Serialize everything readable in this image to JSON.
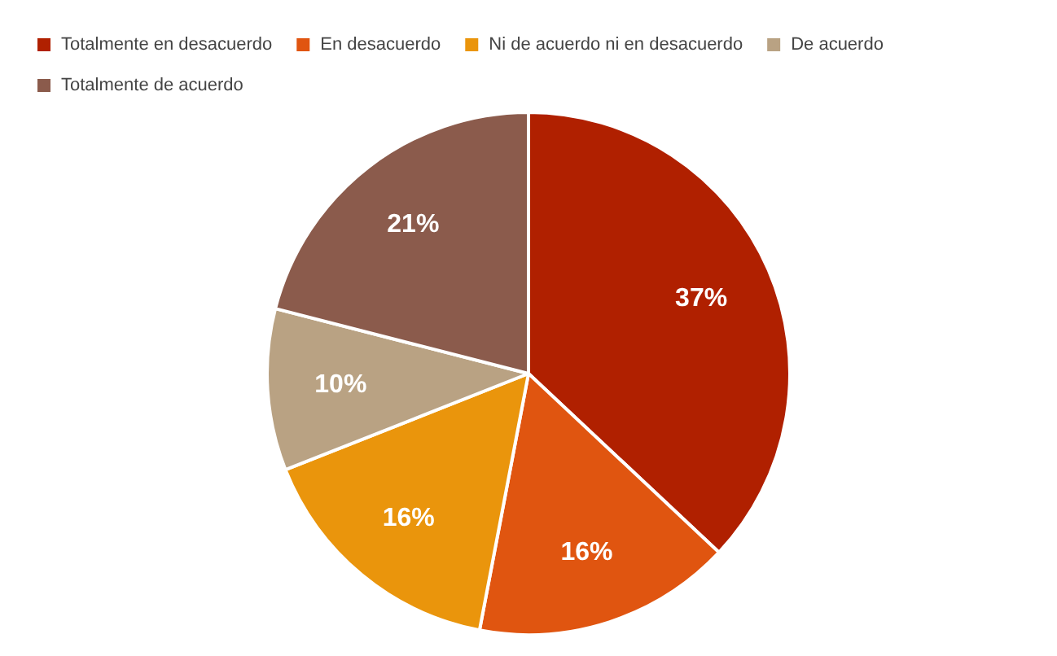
{
  "chart_data": {
    "type": "pie",
    "categories": [
      "Totalmente en desacuerdo",
      "En desacuerdo",
      "Ni de acuerdo ni en desacuerdo",
      "De acuerdo",
      "Totalmente de acuerdo"
    ],
    "values": [
      37,
      16,
      16,
      10,
      21
    ],
    "colors": [
      "#b02000",
      "#e05510",
      "#ea950c",
      "#b9a283",
      "#8b5b4c"
    ],
    "value_labels": [
      "37%",
      "16%",
      "16%",
      "10%",
      "21%"
    ],
    "legend": "top"
  }
}
